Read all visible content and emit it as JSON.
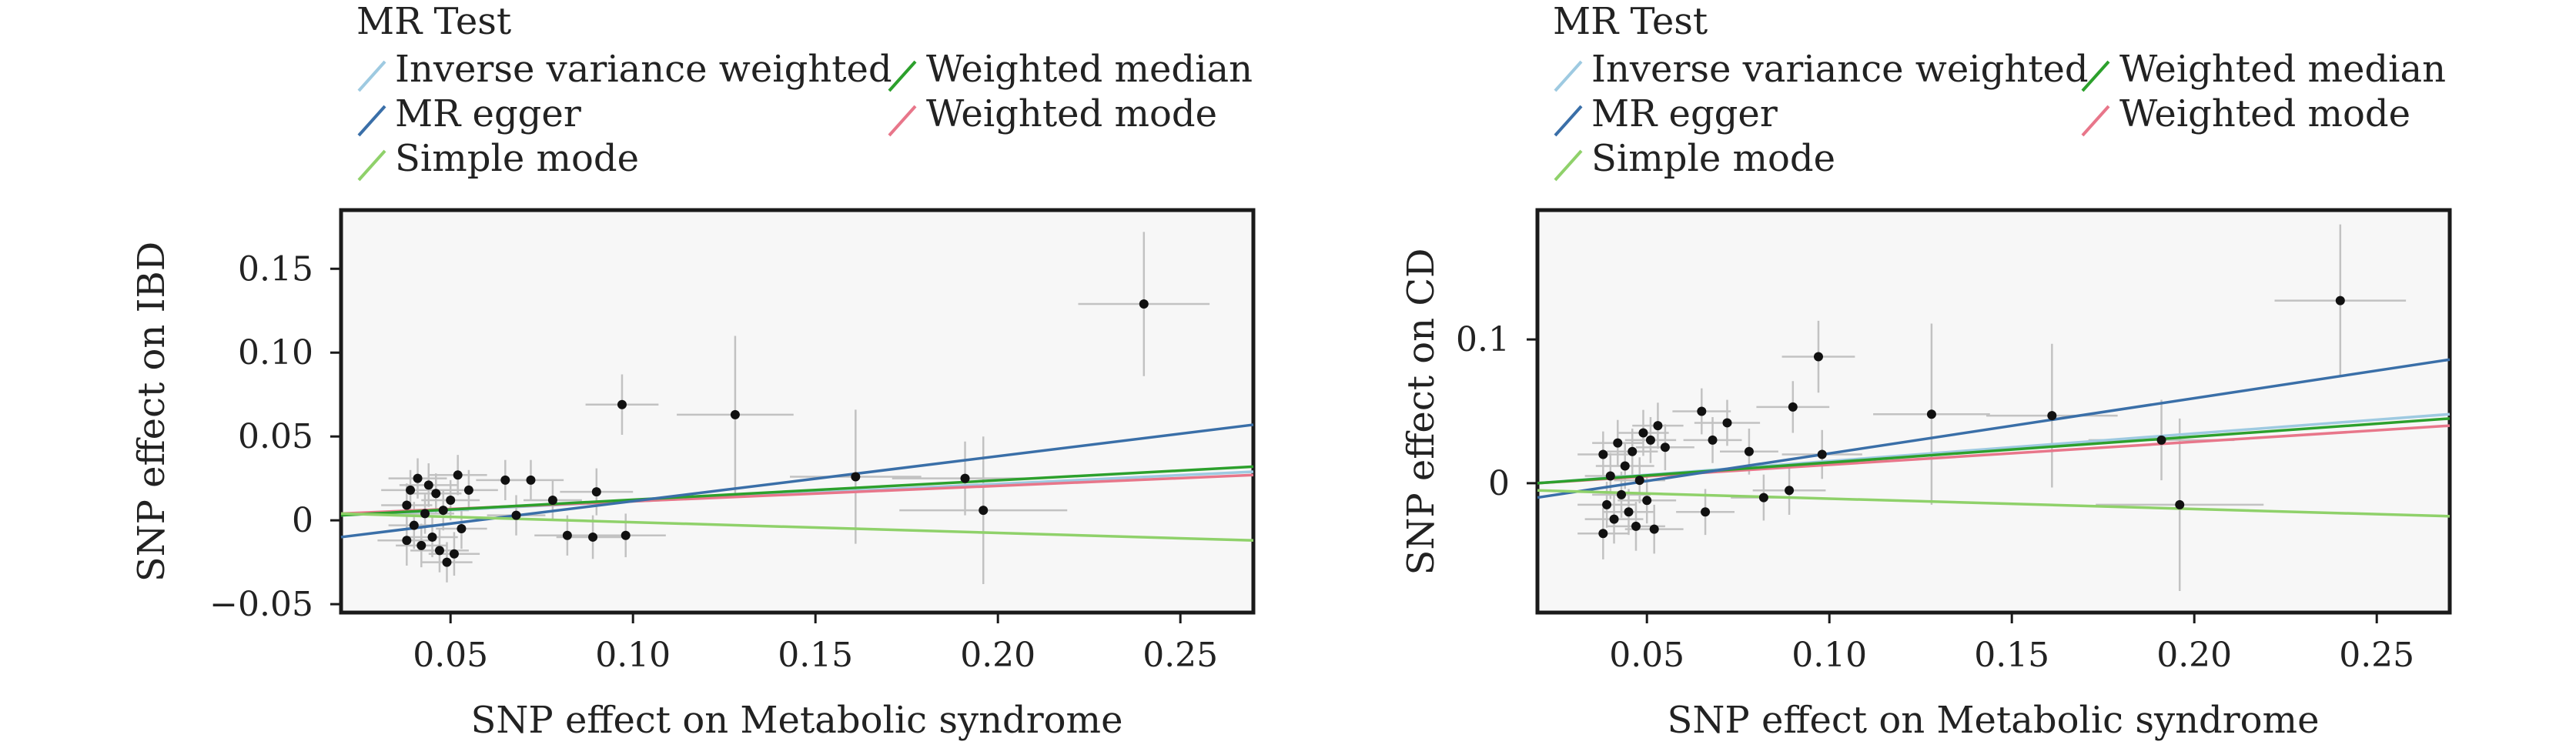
{
  "chart_data": [
    {
      "type": "scatter",
      "title": "",
      "xlabel": "SNP effect on Metabolic syndrome",
      "ylabel": "SNP effect on IBD",
      "xlim": [
        0.02,
        0.27
      ],
      "ylim": [
        -0.055,
        0.185
      ],
      "xticks": [
        0.05,
        0.1,
        0.15,
        0.2,
        0.25
      ],
      "xtick_labels": [
        "0.05",
        "0.10",
        "0.15",
        "0.20",
        "0.25"
      ],
      "yticks": [
        -0.05,
        0,
        0.05,
        0.1,
        0.15
      ],
      "ytick_labels": [
        "−0.05",
        "0",
        "0.05",
        "0.10",
        "0.15"
      ],
      "grid": false,
      "legend": {
        "title": "MR Test",
        "placement": "top",
        "entries": [
          {
            "name": "Inverse variance weighted",
            "color": "#9ecae1"
          },
          {
            "name": "Weighted median",
            "color": "#2ca02c"
          },
          {
            "name": "MR egger",
            "color": "#3a6fa8"
          },
          {
            "name": "Weighted mode",
            "color": "#e8768a"
          },
          {
            "name": "Simple mode",
            "color": "#8fd16a"
          }
        ]
      },
      "lines": [
        {
          "name": "Inverse variance weighted",
          "color": "#9ecae1",
          "x": [
            0.02,
            0.27
          ],
          "y": [
            0.003,
            0.029
          ]
        },
        {
          "name": "Weighted mode",
          "color": "#e8768a",
          "x": [
            0.02,
            0.27
          ],
          "y": [
            0.004,
            0.027
          ]
        },
        {
          "name": "Weighted median",
          "color": "#2ca02c",
          "x": [
            0.02,
            0.27
          ],
          "y": [
            0.003,
            0.032
          ]
        },
        {
          "name": "MR egger",
          "color": "#3a6fa8",
          "x": [
            0.02,
            0.27
          ],
          "y": [
            -0.01,
            0.057
          ]
        },
        {
          "name": "Simple mode",
          "color": "#8fd16a",
          "x": [
            0.02,
            0.27
          ],
          "y": [
            0.004,
            -0.012
          ]
        }
      ],
      "points": [
        {
          "x": 0.038,
          "y": -0.012,
          "xe": 0.008,
          "ye": 0.015
        },
        {
          "x": 0.038,
          "y": 0.009,
          "xe": 0.007,
          "ye": 0.013
        },
        {
          "x": 0.039,
          "y": 0.018,
          "xe": 0.008,
          "ye": 0.012
        },
        {
          "x": 0.04,
          "y": -0.003,
          "xe": 0.007,
          "ye": 0.014
        },
        {
          "x": 0.041,
          "y": 0.025,
          "xe": 0.008,
          "ye": 0.012
        },
        {
          "x": 0.042,
          "y": -0.015,
          "xe": 0.007,
          "ye": 0.013
        },
        {
          "x": 0.043,
          "y": 0.004,
          "xe": 0.008,
          "ye": 0.012
        },
        {
          "x": 0.044,
          "y": 0.021,
          "xe": 0.008,
          "ye": 0.013
        },
        {
          "x": 0.045,
          "y": -0.01,
          "xe": 0.007,
          "ye": 0.012
        },
        {
          "x": 0.046,
          "y": 0.016,
          "xe": 0.007,
          "ye": 0.012
        },
        {
          "x": 0.047,
          "y": -0.018,
          "xe": 0.008,
          "ye": 0.013
        },
        {
          "x": 0.048,
          "y": 0.006,
          "xe": 0.007,
          "ye": 0.012
        },
        {
          "x": 0.049,
          "y": -0.025,
          "xe": 0.007,
          "ye": 0.012
        },
        {
          "x": 0.05,
          "y": 0.012,
          "xe": 0.008,
          "ye": 0.012
        },
        {
          "x": 0.051,
          "y": -0.02,
          "xe": 0.007,
          "ye": 0.013
        },
        {
          "x": 0.052,
          "y": 0.027,
          "xe": 0.008,
          "ye": 0.012
        },
        {
          "x": 0.053,
          "y": -0.005,
          "xe": 0.007,
          "ye": 0.012
        },
        {
          "x": 0.055,
          "y": 0.018,
          "xe": 0.008,
          "ye": 0.012
        },
        {
          "x": 0.065,
          "y": 0.024,
          "xe": 0.008,
          "ye": 0.012
        },
        {
          "x": 0.068,
          "y": 0.003,
          "xe": 0.008,
          "ye": 0.012
        },
        {
          "x": 0.072,
          "y": 0.024,
          "xe": 0.009,
          "ye": 0.012
        },
        {
          "x": 0.078,
          "y": 0.012,
          "xe": 0.008,
          "ye": 0.012
        },
        {
          "x": 0.082,
          "y": -0.009,
          "xe": 0.009,
          "ye": 0.012
        },
        {
          "x": 0.089,
          "y": -0.01,
          "xe": 0.01,
          "ye": 0.013
        },
        {
          "x": 0.09,
          "y": 0.017,
          "xe": 0.01,
          "ye": 0.014
        },
        {
          "x": 0.097,
          "y": 0.069,
          "xe": 0.01,
          "ye": 0.018
        },
        {
          "x": 0.098,
          "y": -0.009,
          "xe": 0.011,
          "ye": 0.013
        },
        {
          "x": 0.128,
          "y": 0.063,
          "xe": 0.016,
          "ye": 0.047
        },
        {
          "x": 0.161,
          "y": 0.026,
          "xe": 0.018,
          "ye": 0.04
        },
        {
          "x": 0.191,
          "y": 0.025,
          "xe": 0.02,
          "ye": 0.022
        },
        {
          "x": 0.196,
          "y": 0.006,
          "xe": 0.023,
          "ye": 0.044
        },
        {
          "x": 0.24,
          "y": 0.129,
          "xe": 0.018,
          "ye": 0.043
        }
      ]
    },
    {
      "type": "scatter",
      "title": "",
      "xlabel": "SNP effect on Metabolic syndrome",
      "ylabel": "SNP effect on CD",
      "xlim": [
        0.02,
        0.27
      ],
      "ylim": [
        -0.09,
        0.19
      ],
      "xticks": [
        0.05,
        0.1,
        0.15,
        0.2,
        0.25
      ],
      "xtick_labels": [
        "0.05",
        "0.10",
        "0.15",
        "0.20",
        "0.25"
      ],
      "yticks": [
        0,
        0.1
      ],
      "ytick_labels": [
        "0",
        "0.1"
      ],
      "grid": false,
      "legend": {
        "title": "MR Test",
        "placement": "top",
        "entries": [
          {
            "name": "Inverse variance weighted",
            "color": "#9ecae1"
          },
          {
            "name": "Weighted median",
            "color": "#2ca02c"
          },
          {
            "name": "MR egger",
            "color": "#3a6fa8"
          },
          {
            "name": "Weighted mode",
            "color": "#e8768a"
          },
          {
            "name": "Simple mode",
            "color": "#8fd16a"
          }
        ]
      },
      "lines": [
        {
          "name": "Inverse variance weighted",
          "color": "#9ecae1",
          "x": [
            0.02,
            0.27
          ],
          "y": [
            0.0,
            0.048
          ]
        },
        {
          "name": "Weighted mode",
          "color": "#e8768a",
          "x": [
            0.02,
            0.27
          ],
          "y": [
            0.0,
            0.04
          ]
        },
        {
          "name": "Weighted median",
          "color": "#2ca02c",
          "x": [
            0.02,
            0.27
          ],
          "y": [
            0.0,
            0.045
          ]
        },
        {
          "name": "MR egger",
          "color": "#3a6fa8",
          "x": [
            0.02,
            0.27
          ],
          "y": [
            -0.01,
            0.086
          ]
        },
        {
          "name": "Simple mode",
          "color": "#8fd16a",
          "x": [
            0.02,
            0.27
          ],
          "y": [
            -0.005,
            -0.023
          ]
        }
      ],
      "points": [
        {
          "x": 0.038,
          "y": -0.035,
          "xe": 0.007,
          "ye": 0.018
        },
        {
          "x": 0.038,
          "y": 0.02,
          "xe": 0.007,
          "ye": 0.016
        },
        {
          "x": 0.039,
          "y": -0.015,
          "xe": 0.008,
          "ye": 0.016
        },
        {
          "x": 0.04,
          "y": 0.005,
          "xe": 0.007,
          "ye": 0.016
        },
        {
          "x": 0.041,
          "y": -0.025,
          "xe": 0.008,
          "ye": 0.017
        },
        {
          "x": 0.042,
          "y": 0.028,
          "xe": 0.007,
          "ye": 0.016
        },
        {
          "x": 0.043,
          "y": -0.008,
          "xe": 0.008,
          "ye": 0.016
        },
        {
          "x": 0.044,
          "y": 0.012,
          "xe": 0.008,
          "ye": 0.016
        },
        {
          "x": 0.045,
          "y": -0.02,
          "xe": 0.007,
          "ye": 0.016
        },
        {
          "x": 0.046,
          "y": 0.022,
          "xe": 0.007,
          "ye": 0.016
        },
        {
          "x": 0.047,
          "y": -0.03,
          "xe": 0.008,
          "ye": 0.017
        },
        {
          "x": 0.048,
          "y": 0.002,
          "xe": 0.007,
          "ye": 0.016
        },
        {
          "x": 0.049,
          "y": 0.035,
          "xe": 0.007,
          "ye": 0.016
        },
        {
          "x": 0.05,
          "y": -0.012,
          "xe": 0.008,
          "ye": 0.016
        },
        {
          "x": 0.051,
          "y": 0.03,
          "xe": 0.007,
          "ye": 0.016
        },
        {
          "x": 0.052,
          "y": -0.032,
          "xe": 0.008,
          "ye": 0.017
        },
        {
          "x": 0.053,
          "y": 0.04,
          "xe": 0.007,
          "ye": 0.016
        },
        {
          "x": 0.055,
          "y": 0.025,
          "xe": 0.008,
          "ye": 0.016
        },
        {
          "x": 0.065,
          "y": 0.05,
          "xe": 0.008,
          "ye": 0.016
        },
        {
          "x": 0.066,
          "y": -0.02,
          "xe": 0.008,
          "ye": 0.016
        },
        {
          "x": 0.068,
          "y": 0.03,
          "xe": 0.008,
          "ye": 0.016
        },
        {
          "x": 0.072,
          "y": 0.042,
          "xe": 0.009,
          "ye": 0.016
        },
        {
          "x": 0.078,
          "y": 0.022,
          "xe": 0.008,
          "ye": 0.016
        },
        {
          "x": 0.082,
          "y": -0.01,
          "xe": 0.009,
          "ye": 0.016
        },
        {
          "x": 0.089,
          "y": -0.005,
          "xe": 0.01,
          "ye": 0.017
        },
        {
          "x": 0.09,
          "y": 0.053,
          "xe": 0.01,
          "ye": 0.018
        },
        {
          "x": 0.097,
          "y": 0.088,
          "xe": 0.01,
          "ye": 0.025
        },
        {
          "x": 0.098,
          "y": 0.02,
          "xe": 0.011,
          "ye": 0.017
        },
        {
          "x": 0.128,
          "y": 0.048,
          "xe": 0.016,
          "ye": 0.063
        },
        {
          "x": 0.161,
          "y": 0.047,
          "xe": 0.018,
          "ye": 0.05
        },
        {
          "x": 0.191,
          "y": 0.03,
          "xe": 0.02,
          "ye": 0.028
        },
        {
          "x": 0.196,
          "y": -0.015,
          "xe": 0.023,
          "ye": 0.06
        },
        {
          "x": 0.24,
          "y": 0.127,
          "xe": 0.018,
          "ye": 0.053
        }
      ]
    }
  ]
}
